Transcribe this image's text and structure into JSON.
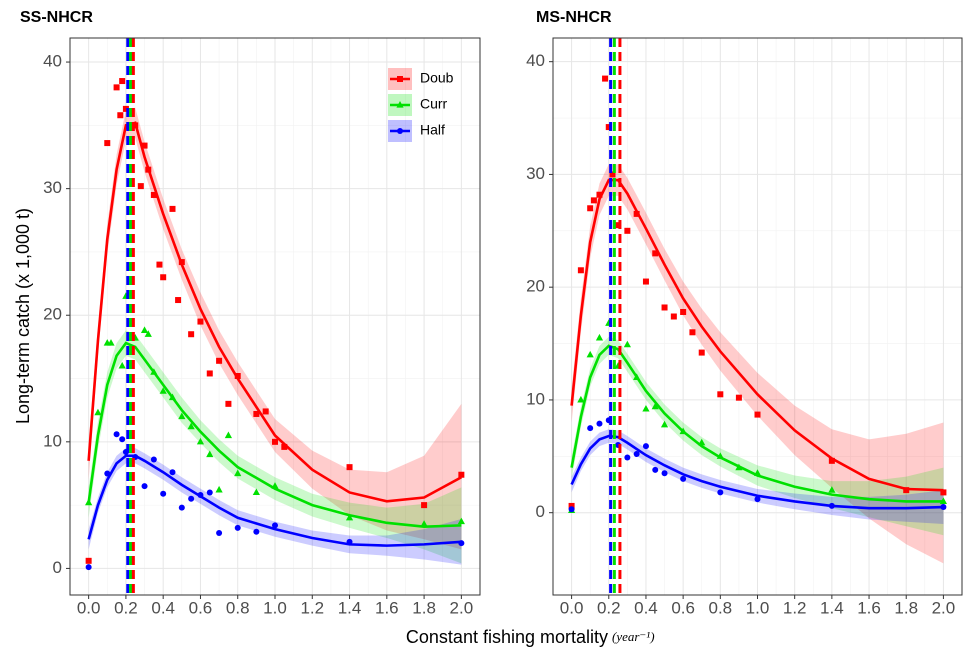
{
  "ylabel": "Long-term catch (x 1,000 t)",
  "xlabel": "Constant fishing mortality",
  "xlabel_unit": "(year⁻¹)",
  "chart_data": [
    {
      "type": "scatter-smooth",
      "title": "SS-NHCR",
      "xlim": [
        -0.1,
        2.1
      ],
      "ylim": [
        -2.1,
        41.9
      ],
      "xticks": [
        {
          "value": 0,
          "label": "0.0"
        },
        {
          "value": 0.2,
          "label": "0.2"
        },
        {
          "value": 0.4,
          "label": "0.4"
        },
        {
          "value": 0.6,
          "label": "0.6"
        },
        {
          "value": 0.8,
          "label": "0.8"
        },
        {
          "value": 1.0,
          "label": "1.0"
        },
        {
          "value": 1.2,
          "label": "1.2"
        },
        {
          "value": 1.4,
          "label": "1.4"
        },
        {
          "value": 1.6,
          "label": "1.6"
        },
        {
          "value": 1.8,
          "label": "1.8"
        },
        {
          "value": 2.0,
          "label": "2.0"
        }
      ],
      "yticks": [
        0,
        10,
        20,
        30,
        40
      ],
      "grid": true,
      "legend": "top-right",
      "series": [
        {
          "name": "Doub",
          "color": "#ff0000",
          "marker": "square",
          "fmsy": 0.24,
          "x": [
            0,
            0.1,
            0.15,
            0.17,
            0.2,
            0.18,
            0.25,
            0.28,
            0.3,
            0.32,
            0.35,
            0.38,
            0.4,
            0.45,
            0.5,
            0.48,
            0.55,
            0.6,
            0.65,
            0.7,
            0.75,
            0.8,
            0.9,
            0.95,
            1.0,
            1.05,
            1.4,
            1.8,
            2.0
          ],
          "values": [
            0.6,
            33.6,
            38,
            35.8,
            36.3,
            38.5,
            35,
            30.2,
            33.4,
            31.5,
            29.5,
            24,
            23,
            28.4,
            24.2,
            21.2,
            18.5,
            19.5,
            15.4,
            16.4,
            13,
            15.2,
            12.2,
            12.4,
            10,
            9.6,
            8,
            5,
            7.4
          ],
          "smooth": {
            "x": [
              0,
              0.05,
              0.1,
              0.15,
              0.2,
              0.25,
              0.3,
              0.4,
              0.5,
              0.6,
              0.7,
              0.8,
              1.0,
              1.2,
              1.4,
              1.6,
              1.8,
              2.0
            ],
            "values": [
              8.5,
              18,
              26,
              31.5,
              35,
              35.2,
              32.5,
              28,
              24,
              20.5,
              17.5,
              15,
              10.5,
              7.8,
              6,
              5.3,
              5.6,
              7.2
            ],
            "lower": [
              7,
              16.8,
              24.8,
              30.3,
              33.8,
              34,
              31.3,
              26.8,
              22.8,
              19.2,
              16.2,
              13.7,
              9.2,
              6.3,
              4.2,
              3,
              2.3,
              1.5
            ],
            "upper": [
              10,
              19.2,
              27.2,
              32.7,
              36.2,
              36.4,
              33.7,
              29.2,
              25.2,
              21.8,
              18.8,
              16.3,
              11.8,
              9.3,
              7.8,
              7.6,
              8.9,
              13
            ]
          }
        },
        {
          "name": "Curr",
          "color": "#00e000",
          "marker": "triangle",
          "fmsy": 0.225,
          "x": [
            0,
            0.05,
            0.1,
            0.12,
            0.18,
            0.2,
            0.25,
            0.3,
            0.32,
            0.35,
            0.4,
            0.45,
            0.5,
            0.55,
            0.6,
            0.65,
            0.7,
            0.75,
            0.8,
            0.9,
            1.0,
            1.4,
            1.8,
            2.0
          ],
          "values": [
            5.2,
            12.3,
            17.8,
            17.8,
            16,
            21.5,
            18.2,
            18.8,
            18.5,
            15.5,
            14,
            13.5,
            12,
            11.2,
            10,
            9,
            6.2,
            10.5,
            7.5,
            6,
            6.5,
            4,
            3.5,
            3.7
          ],
          "smooth": {
            "x": [
              0,
              0.05,
              0.1,
              0.15,
              0.2,
              0.25,
              0.3,
              0.4,
              0.5,
              0.6,
              0.7,
              0.8,
              1.0,
              1.2,
              1.4,
              1.6,
              1.8,
              2.0
            ],
            "values": [
              5.2,
              10.5,
              14.5,
              16.8,
              17.8,
              17.5,
              16.5,
              14.5,
              12.5,
              10.8,
              9.3,
              8,
              6.3,
              5,
              4.2,
              3.6,
              3.3,
              3.4
            ],
            "lower": [
              4,
              9.4,
              13.5,
              15.8,
              16.8,
              16.5,
              15.5,
              13.5,
              11.5,
              9.9,
              8.4,
              7.1,
              5.4,
              4.1,
              3.2,
              2.4,
              1.5,
              0.4
            ],
            "upper": [
              6.4,
              11.6,
              15.5,
              17.8,
              18.8,
              18.5,
              17.5,
              15.5,
              13.5,
              11.7,
              10.2,
              8.9,
              7.2,
              5.9,
              5.2,
              4.8,
              5.1,
              6.4
            ]
          }
        },
        {
          "name": "Half",
          "color": "#0000ff",
          "marker": "circle",
          "fmsy": 0.21,
          "x": [
            0,
            0.1,
            0.15,
            0.18,
            0.2,
            0.25,
            0.3,
            0.35,
            0.4,
            0.45,
            0.5,
            0.55,
            0.6,
            0.65,
            0.7,
            0.8,
            0.9,
            1.0,
            1.4,
            2.0
          ],
          "values": [
            0.1,
            7.5,
            10.6,
            10.2,
            9.2,
            8.8,
            6.5,
            8.6,
            5.9,
            7.6,
            4.8,
            5.5,
            5.8,
            6,
            2.8,
            3.2,
            2.9,
            3.4,
            2.1,
            2
          ],
          "smooth": {
            "x": [
              0,
              0.05,
              0.1,
              0.15,
              0.2,
              0.25,
              0.3,
              0.4,
              0.5,
              0.6,
              0.7,
              0.8,
              1.0,
              1.2,
              1.4,
              1.6,
              1.8,
              2.0
            ],
            "values": [
              2.3,
              5,
              7,
              8.3,
              8.9,
              8.9,
              8.5,
              7.6,
              6.6,
              5.7,
              4.8,
              4,
              3.1,
              2.4,
              1.9,
              1.8,
              1.9,
              2.1
            ],
            "lower": [
              1.5,
              4.4,
              6.4,
              7.7,
              8.3,
              8.3,
              7.9,
              7,
              6,
              5.1,
              4.2,
              3.4,
              2.5,
              1.8,
              1.2,
              1,
              0.7,
              0.3
            ],
            "upper": [
              3.1,
              5.6,
              7.6,
              8.9,
              9.5,
              9.5,
              9.1,
              8.2,
              7.2,
              6.3,
              5.4,
              4.6,
              3.7,
              3,
              2.6,
              2.6,
              3.1,
              3.9
            ]
          }
        }
      ]
    },
    {
      "type": "scatter-smooth",
      "title": "MS-NHCR",
      "xlim": [
        -0.1,
        2.1
      ],
      "ylim": [
        -7.3,
        42.1
      ],
      "xticks": [
        {
          "value": 0,
          "label": "0.0"
        },
        {
          "value": 0.2,
          "label": "0.2"
        },
        {
          "value": 0.4,
          "label": "0.4"
        },
        {
          "value": 0.6,
          "label": "0.6"
        },
        {
          "value": 0.8,
          "label": "0.8"
        },
        {
          "value": 1.0,
          "label": "1.0"
        },
        {
          "value": 1.2,
          "label": "1.2"
        },
        {
          "value": 1.4,
          "label": "1.4"
        },
        {
          "value": 1.6,
          "label": "1.6"
        },
        {
          "value": 1.8,
          "label": "1.8"
        },
        {
          "value": 2.0,
          "label": "2.0"
        }
      ],
      "yticks": [
        0,
        10,
        20,
        30,
        40
      ],
      "grid": true,
      "series": [
        {
          "name": "Doub",
          "color": "#ff0000",
          "marker": "square",
          "fmsy": 0.26,
          "x": [
            0,
            0.05,
            0.1,
            0.12,
            0.15,
            0.18,
            0.2,
            0.22,
            0.25,
            0.3,
            0.35,
            0.4,
            0.45,
            0.5,
            0.55,
            0.6,
            0.65,
            0.7,
            0.8,
            0.9,
            1.0,
            1.4,
            1.8,
            2.0
          ],
          "values": [
            0.6,
            21.5,
            27,
            27.7,
            28.2,
            38.5,
            34.2,
            30,
            25.5,
            25,
            26.5,
            20.5,
            23,
            18.2,
            17.4,
            17.8,
            16,
            14.2,
            10.5,
            10.2,
            8.7,
            4.6,
            2,
            1.8
          ],
          "smooth": {
            "x": [
              0,
              0.05,
              0.1,
              0.15,
              0.2,
              0.25,
              0.3,
              0.4,
              0.5,
              0.6,
              0.7,
              0.8,
              1.0,
              1.2,
              1.4,
              1.6,
              1.8,
              2.0
            ],
            "values": [
              9.5,
              17.5,
              24,
              27.8,
              29.5,
              29.5,
              28.3,
              25.2,
              22,
              19,
              16.5,
              14.3,
              10.5,
              7.3,
              4.8,
              3,
              2.1,
              2
            ],
            "lower": [
              8,
              16,
              22.6,
              26.4,
              28.1,
              28.1,
              26.9,
              23.8,
              20.6,
              17.5,
              14.9,
              12.6,
              8.6,
              5.1,
              2.2,
              -0.5,
              -2.8,
              -4.5
            ],
            "upper": [
              11,
              19,
              25.4,
              29.2,
              30.9,
              30.9,
              29.7,
              26.6,
              23.4,
              20.5,
              18.1,
              16,
              12.4,
              9.5,
              7.4,
              6.5,
              7,
              8
            ]
          }
        },
        {
          "name": "Curr",
          "color": "#00e000",
          "marker": "triangle",
          "fmsy": 0.23,
          "x": [
            0,
            0.05,
            0.1,
            0.15,
            0.2,
            0.25,
            0.3,
            0.35,
            0.4,
            0.45,
            0.5,
            0.6,
            0.7,
            0.8,
            0.9,
            1.0,
            1.4,
            2.0
          ],
          "values": [
            0.2,
            10,
            14,
            15.5,
            16.8,
            13,
            14.9,
            12,
            9.2,
            9.4,
            7.8,
            7.2,
            6.2,
            5,
            4,
            3.5,
            2,
            1
          ],
          "smooth": {
            "x": [
              0,
              0.05,
              0.1,
              0.15,
              0.2,
              0.25,
              0.3,
              0.4,
              0.5,
              0.6,
              0.7,
              0.8,
              1.0,
              1.2,
              1.4,
              1.6,
              1.8,
              2.0
            ],
            "values": [
              4,
              8.5,
              12,
              14,
              14.8,
              14.5,
              13.3,
              10.8,
              8.8,
              7.2,
              5.9,
              4.9,
              3.3,
              2.3,
              1.6,
              1.2,
              1,
              1
            ],
            "lower": [
              3,
              7.6,
              11.2,
              13.2,
              14,
              13.7,
              12.5,
              10,
              8,
              6.4,
              5.1,
              4.1,
              2.4,
              1.3,
              0.4,
              -0.4,
              -1.2,
              -2
            ],
            "upper": [
              5,
              9.4,
              12.8,
              14.8,
              15.6,
              15.3,
              14.1,
              11.6,
              9.6,
              8,
              6.7,
              5.7,
              4.2,
              3.3,
              2.8,
              2.8,
              3.2,
              4
            ]
          }
        },
        {
          "name": "Half",
          "color": "#0000ff",
          "marker": "circle",
          "fmsy": 0.21,
          "x": [
            0,
            0.1,
            0.15,
            0.2,
            0.25,
            0.3,
            0.35,
            0.4,
            0.45,
            0.5,
            0.6,
            0.8,
            1.0,
            1.4,
            2.0
          ],
          "values": [
            0.3,
            7.5,
            7.9,
            8.2,
            6,
            4.9,
            5.2,
            5.9,
            3.8,
            3.5,
            3,
            1.8,
            1.2,
            0.6,
            0.5
          ],
          "smooth": {
            "x": [
              0,
              0.05,
              0.1,
              0.15,
              0.2,
              0.25,
              0.3,
              0.4,
              0.5,
              0.6,
              0.7,
              0.8,
              1.0,
              1.2,
              1.4,
              1.6,
              1.8,
              2.0
            ],
            "values": [
              2.5,
              4.3,
              5.7,
              6.5,
              6.8,
              6.7,
              6.2,
              5.1,
              4.2,
              3.4,
              2.8,
              2.3,
              1.5,
              1,
              0.6,
              0.4,
              0.4,
              0.5
            ],
            "lower": [
              1.8,
              3.7,
              5.1,
              5.9,
              6.2,
              6.1,
              5.6,
              4.5,
              3.6,
              2.8,
              2.2,
              1.7,
              0.9,
              0.3,
              -0.2,
              -0.6,
              -0.8,
              -1
            ],
            "upper": [
              3.2,
              4.9,
              6.3,
              7.1,
              7.4,
              7.3,
              6.8,
              5.7,
              4.8,
              4,
              3.4,
              2.9,
              2.1,
              1.7,
              1.4,
              1.4,
              1.6,
              2
            ]
          }
        }
      ]
    }
  ]
}
